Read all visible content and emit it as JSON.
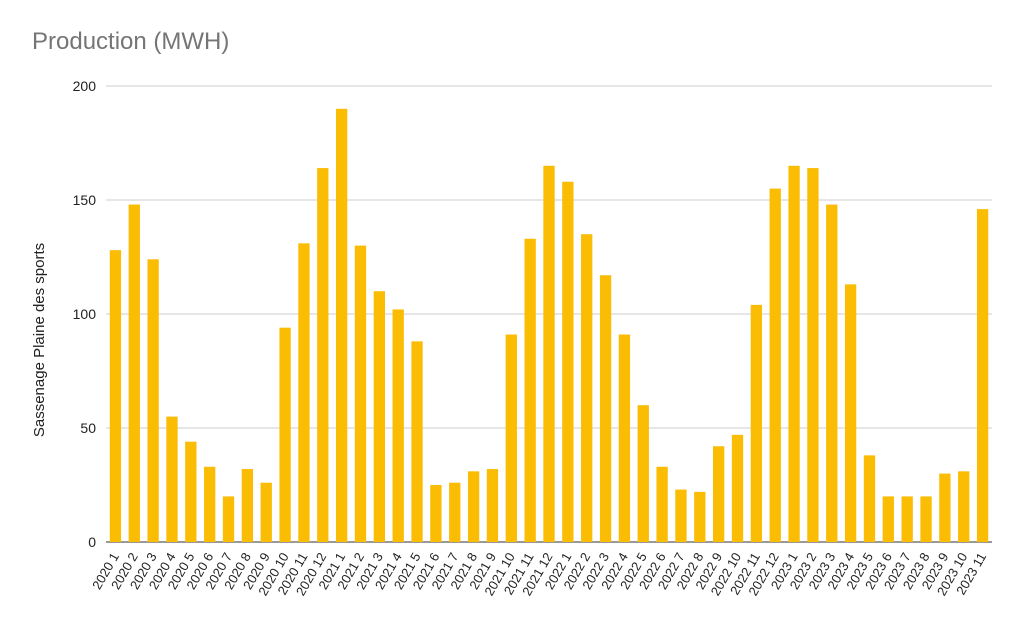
{
  "chart_data": {
    "type": "bar",
    "title": "Production (MWH)",
    "xlabel": "",
    "ylabel": "Sassenage Plaine des sports",
    "ylim": [
      0,
      200
    ],
    "yticks": [
      "0",
      "50",
      "100",
      "150",
      "200"
    ],
    "grid": true,
    "bar_color": "#FBBC04",
    "categories": [
      "2020 1",
      "2020 2",
      "2020 3",
      "2020 4",
      "2020 5",
      "2020 6",
      "2020 7",
      "2020 8",
      "2020 9",
      "2020 10",
      "2020 11",
      "2020 12",
      "2021 1",
      "2021 2",
      "2021 3",
      "2021 4",
      "2021 5",
      "2021 6",
      "2021 7",
      "2021 8",
      "2021 9",
      "2021 10",
      "2021 11",
      "2021 12",
      "2022 1",
      "2022 2",
      "2022 3",
      "2022 4",
      "2022 5",
      "2022 6",
      "2022 7",
      "2022 8",
      "2022 9",
      "2022 10",
      "2022 11",
      "2022 12",
      "2023 1",
      "2023 2",
      "2023 3",
      "2023 4",
      "2023 5",
      "2023 6",
      "2023 7",
      "2023 8",
      "2023 9",
      "2023 10",
      "2023 11"
    ],
    "values": [
      128,
      148,
      124,
      55,
      44,
      33,
      20,
      32,
      26,
      94,
      131,
      164,
      190,
      130,
      110,
      102,
      88,
      25,
      26,
      31,
      32,
      91,
      133,
      165,
      158,
      135,
      117,
      91,
      60,
      33,
      23,
      22,
      42,
      47,
      104,
      155,
      165,
      164,
      148,
      113,
      38,
      20,
      20,
      20,
      30,
      31,
      146
    ]
  }
}
